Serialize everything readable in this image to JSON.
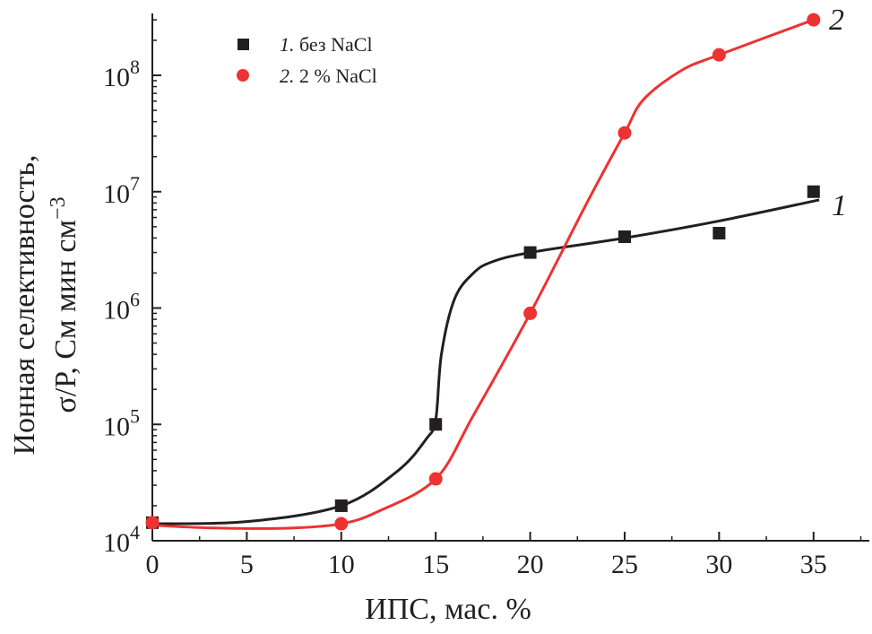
{
  "chart_data": {
    "type": "line",
    "title": "",
    "xlabel": "ИПС, мас. %",
    "ylabel_line1": "Ионная селективность,",
    "ylabel_line2": "σ/P, См мин см",
    "ylabel_exp": "−3",
    "xlim": [
      0,
      38
    ],
    "ylim": [
      10000,
      400000000
    ],
    "yscale": "log",
    "x_ticks": [
      "0",
      "5",
      "10",
      "15",
      "20",
      "25",
      "30",
      "35"
    ],
    "y_ticks": [
      {
        "base": "10",
        "exp": "4"
      },
      {
        "base": "10",
        "exp": "5"
      },
      {
        "base": "10",
        "exp": "6"
      },
      {
        "base": "10",
        "exp": "7"
      },
      {
        "base": "10",
        "exp": "8"
      }
    ],
    "legend_position": "top-left",
    "series": [
      {
        "name": "1. без NaCl",
        "legend_num": "1.",
        "legend_text": "без NaCl",
        "curve_label": "1",
        "color": "#231f20",
        "marker": "square",
        "x": [
          0,
          10,
          15,
          20,
          25,
          30,
          35
        ],
        "y": [
          14300,
          20000,
          100000,
          3000000,
          4100000,
          4400000,
          10000000
        ],
        "fit": [
          [
            0,
            14000
          ],
          [
            5,
            14600
          ],
          [
            10,
            20000
          ],
          [
            13,
            40000
          ],
          [
            14.5,
            75000
          ],
          [
            15,
            110000
          ],
          [
            15.3,
            400000
          ],
          [
            16,
            1200000
          ],
          [
            17,
            2000000
          ],
          [
            18,
            2500000
          ],
          [
            20,
            3000000
          ],
          [
            25,
            4000000
          ],
          [
            30,
            5600000
          ],
          [
            35.3,
            8500000
          ]
        ]
      },
      {
        "name": "2. 2 % NaCl",
        "legend_num": "2.",
        "legend_text": "2 % NaCl",
        "curve_label": "2",
        "color": "#ee3131",
        "marker": "circle",
        "x": [
          0,
          10,
          15,
          20,
          25,
          30,
          35
        ],
        "y": [
          14300,
          14000,
          34000,
          900000,
          32000000,
          150000000,
          300000000
        ],
        "fit": [
          [
            0,
            13600
          ],
          [
            3,
            12900
          ],
          [
            7,
            12800
          ],
          [
            10,
            14000
          ],
          [
            12,
            18000
          ],
          [
            15,
            34000
          ],
          [
            17,
            120000
          ],
          [
            20,
            900000
          ],
          [
            23,
            8000000
          ],
          [
            25,
            32000000
          ],
          [
            26,
            62000000
          ],
          [
            28,
            110000000
          ],
          [
            30,
            150000000
          ],
          [
            35,
            300000000
          ]
        ]
      }
    ]
  }
}
